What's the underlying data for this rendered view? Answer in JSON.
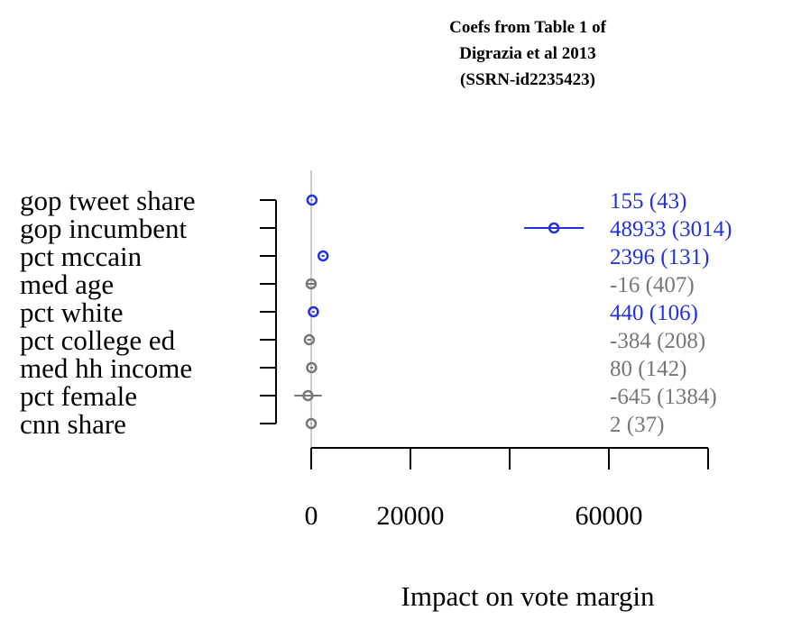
{
  "chart_data": {
    "type": "scatter",
    "title_lines": [
      "Coefs from Table 1 of",
      "Digrazia et al 2013",
      "(SSRN-id2235423)"
    ],
    "xlabel": "Impact on vote margin",
    "ylabel": "",
    "xlim": [
      0,
      80000
    ],
    "x_ticks": [
      0,
      20000,
      40000,
      60000,
      80000
    ],
    "x_tick_labels": [
      "0",
      "20000",
      "",
      "60000",
      ""
    ],
    "zero_line": true,
    "grid": false,
    "colors": {
      "significant": "#2233dd",
      "not_significant": "#777777",
      "zero_line": "#bbbbbb",
      "axis": "#000000"
    },
    "points": [
      {
        "label": "gop tweet share",
        "estimate": 155,
        "se": 43,
        "text": "155 (43)",
        "significant": true
      },
      {
        "label": "gop incumbent",
        "estimate": 48933,
        "se": 3014,
        "text": "48933 (3014)",
        "significant": true
      },
      {
        "label": "pct mccain",
        "estimate": 2396,
        "se": 131,
        "text": "2396 (131)",
        "significant": true
      },
      {
        "label": "med age",
        "estimate": -16,
        "se": 407,
        "text": "-16 (407)",
        "significant": false
      },
      {
        "label": "pct white",
        "estimate": 440,
        "se": 106,
        "text": "440 (106)",
        "significant": true
      },
      {
        "label": "pct college ed",
        "estimate": -384,
        "se": 208,
        "text": "-384 (208)",
        "significant": false
      },
      {
        "label": "med hh income",
        "estimate": 80,
        "se": 142,
        "text": "80 (142)",
        "significant": false
      },
      {
        "label": "pct female",
        "estimate": -645,
        "se": 1384,
        "text": "-645 (1384)",
        "significant": false
      },
      {
        "label": "cnn share",
        "estimate": 2,
        "se": 37,
        "text": "2 (37)",
        "significant": false
      }
    ]
  }
}
